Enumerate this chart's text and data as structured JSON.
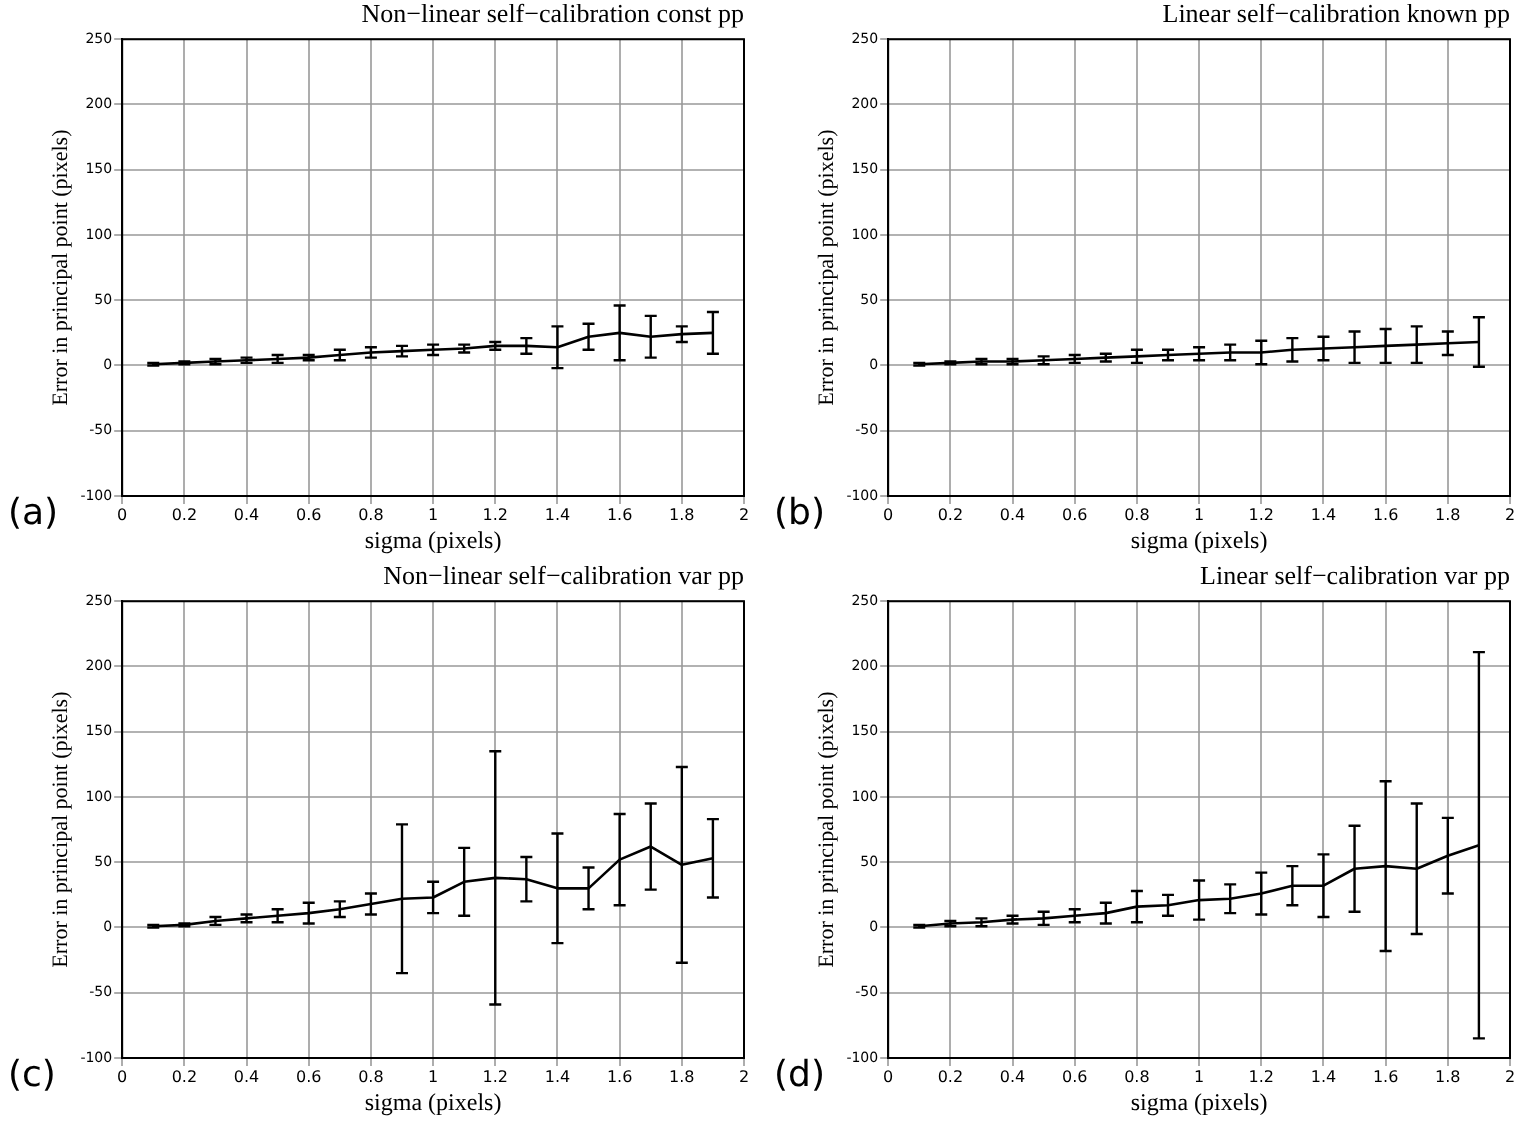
{
  "chart_data": [
    {
      "type": "line",
      "title": "Non−linear self−calibration const pp",
      "xlabel": "sigma (pixels)",
      "ylabel": "Error in principal point (pixels)",
      "annotations": [
        "(a)"
      ],
      "x": [
        0.1,
        0.2,
        0.3,
        0.4,
        0.5,
        0.6,
        0.7,
        0.8,
        0.9,
        1.0,
        1.1,
        1.2,
        1.3,
        1.4,
        1.5,
        1.6,
        1.7,
        1.8,
        1.9
      ],
      "series": [
        {
          "color": "#000000",
          "values": [
            1,
            2,
            3,
            4,
            5,
            6,
            8,
            10,
            11,
            12,
            13,
            15,
            15,
            14,
            22,
            25,
            22,
            24,
            25
          ],
          "errors": [
            1,
            1,
            2,
            2,
            3,
            2,
            4,
            4,
            4,
            4,
            3,
            3,
            6,
            16,
            10,
            21,
            16,
            6,
            16
          ]
        }
      ],
      "xlim": [
        0,
        2
      ],
      "xticks": [
        0,
        0.2,
        0.4,
        0.6,
        0.8,
        1,
        1.2,
        1.4,
        1.6,
        1.8,
        2
      ],
      "ylim": [
        -100,
        250
      ],
      "yticks": [
        -100,
        -50,
        0,
        50,
        100,
        150,
        200,
        250
      ],
      "grid": true,
      "marker": "none",
      "line_style": "solid"
    },
    {
      "type": "line",
      "title": "Linear self−calibration known pp",
      "xlabel": "sigma (pixels)",
      "ylabel": "Error in principal point (pixels)",
      "annotations": [
        "(b)"
      ],
      "x": [
        0.1,
        0.2,
        0.3,
        0.4,
        0.5,
        0.6,
        0.7,
        0.8,
        0.9,
        1.0,
        1.1,
        1.2,
        1.3,
        1.4,
        1.5,
        1.6,
        1.7,
        1.8,
        1.9
      ],
      "series": [
        {
          "color": "#000000",
          "values": [
            1,
            2,
            3,
            3,
            4,
            5,
            6,
            7,
            8,
            9,
            10,
            10,
            12,
            13,
            14,
            15,
            16,
            17,
            18
          ],
          "errors": [
            1,
            1,
            2,
            2,
            3,
            3,
            3,
            5,
            4,
            5,
            6,
            9,
            9,
            9,
            12,
            13,
            14,
            9,
            19
          ]
        }
      ],
      "xlim": [
        0,
        2
      ],
      "xticks": [
        0,
        0.2,
        0.4,
        0.6,
        0.8,
        1,
        1.2,
        1.4,
        1.6,
        1.8,
        2
      ],
      "ylim": [
        -100,
        250
      ],
      "yticks": [
        -100,
        -50,
        0,
        50,
        100,
        150,
        200,
        250
      ],
      "grid": true,
      "marker": "none",
      "line_style": "solid"
    },
    {
      "type": "line",
      "title": "Non−linear self−calibration var pp",
      "xlabel": "sigma (pixels)",
      "ylabel": "Error in principal point (pixels)",
      "annotations": [
        "(c)"
      ],
      "x": [
        0.1,
        0.2,
        0.3,
        0.4,
        0.5,
        0.6,
        0.7,
        0.8,
        0.9,
        1.0,
        1.1,
        1.2,
        1.3,
        1.4,
        1.5,
        1.6,
        1.7,
        1.8,
        1.9
      ],
      "series": [
        {
          "color": "#000000",
          "values": [
            1,
            2,
            5,
            7,
            9,
            11,
            14,
            18,
            22,
            23,
            35,
            38,
            37,
            30,
            30,
            52,
            62,
            48,
            53
          ],
          "errors": [
            1,
            1,
            3,
            3,
            5,
            8,
            6,
            8,
            57,
            12,
            26,
            97,
            17,
            42,
            16,
            35,
            33,
            75,
            30
          ]
        }
      ],
      "xlim": [
        0,
        2
      ],
      "xticks": [
        0,
        0.2,
        0.4,
        0.6,
        0.8,
        1,
        1.2,
        1.4,
        1.6,
        1.8,
        2
      ],
      "ylim": [
        -100,
        250
      ],
      "yticks": [
        -100,
        -50,
        0,
        50,
        100,
        150,
        200,
        250
      ],
      "grid": true,
      "marker": "none",
      "line_style": "solid"
    },
    {
      "type": "line",
      "title": "Linear self−calibration var pp",
      "xlabel": "sigma (pixels)",
      "ylabel": "Error in principal point (pixels)",
      "annotations": [
        "(d)"
      ],
      "x": [
        0.1,
        0.2,
        0.3,
        0.4,
        0.5,
        0.6,
        0.7,
        0.8,
        0.9,
        1.0,
        1.1,
        1.2,
        1.3,
        1.4,
        1.5,
        1.6,
        1.7,
        1.8,
        1.9
      ],
      "series": [
        {
          "color": "#000000",
          "values": [
            1,
            3,
            4,
            6,
            7,
            9,
            11,
            16,
            17,
            21,
            22,
            26,
            32,
            32,
            45,
            47,
            45,
            55,
            63
          ],
          "errors": [
            1,
            2,
            3,
            3,
            5,
            5,
            8,
            12,
            8,
            15,
            11,
            16,
            15,
            24,
            33,
            65,
            50,
            29,
            148
          ]
        }
      ],
      "xlim": [
        0,
        2
      ],
      "xticks": [
        0,
        0.2,
        0.4,
        0.6,
        0.8,
        1,
        1.2,
        1.4,
        1.6,
        1.8,
        2
      ],
      "ylim": [
        -100,
        250
      ],
      "yticks": [
        -100,
        -50,
        0,
        50,
        100,
        150,
        200,
        250
      ],
      "grid": true,
      "marker": "none",
      "line_style": "solid"
    }
  ]
}
